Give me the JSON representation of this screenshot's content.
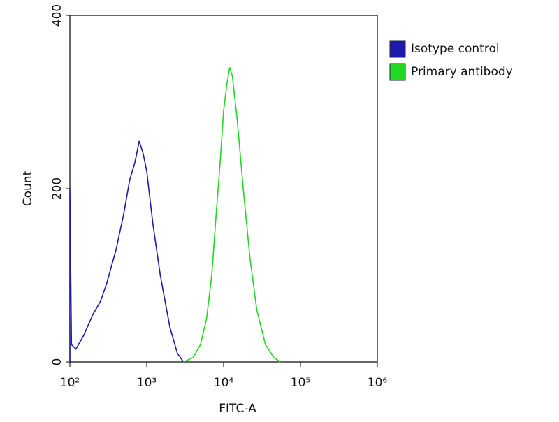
{
  "chart_data": {
    "type": "line",
    "x_label": "FITC-A",
    "y_label": "Count",
    "xscale": "log",
    "xlim": [
      100,
      1000000
    ],
    "xticks": [
      {
        "value": 100,
        "label": "10²"
      },
      {
        "value": 1000,
        "label": "10³"
      },
      {
        "value": 10000,
        "label": "10⁴"
      },
      {
        "value": 100000,
        "label": "10⁵"
      },
      {
        "value": 1000000,
        "label": "10⁶"
      }
    ],
    "ylim": [
      0,
      400
    ],
    "yticks": [
      0,
      200,
      400
    ],
    "legend": "right",
    "series": [
      {
        "name": "Isotype control",
        "color": "#1c1ca8",
        "x": [
          100,
          100,
          105,
          120,
          150,
          200,
          250,
          300,
          400,
          500,
          600,
          700,
          800,
          900,
          1000,
          1200,
          1500,
          2000,
          2500,
          3000
        ],
        "values": [
          0,
          200,
          20,
          15,
          30,
          55,
          70,
          90,
          130,
          170,
          210,
          230,
          255,
          240,
          220,
          160,
          100,
          40,
          10,
          0
        ]
      },
      {
        "name": "Primary antibody",
        "color": "#22d822",
        "x": [
          3000,
          4000,
          5000,
          6000,
          7000,
          8000,
          9000,
          10000,
          11000,
          12000,
          13000,
          15000,
          18000,
          22000,
          27000,
          35000,
          45000,
          55000
        ],
        "values": [
          0,
          5,
          20,
          50,
          100,
          170,
          230,
          290,
          320,
          340,
          330,
          280,
          200,
          120,
          60,
          20,
          5,
          0
        ]
      }
    ]
  }
}
